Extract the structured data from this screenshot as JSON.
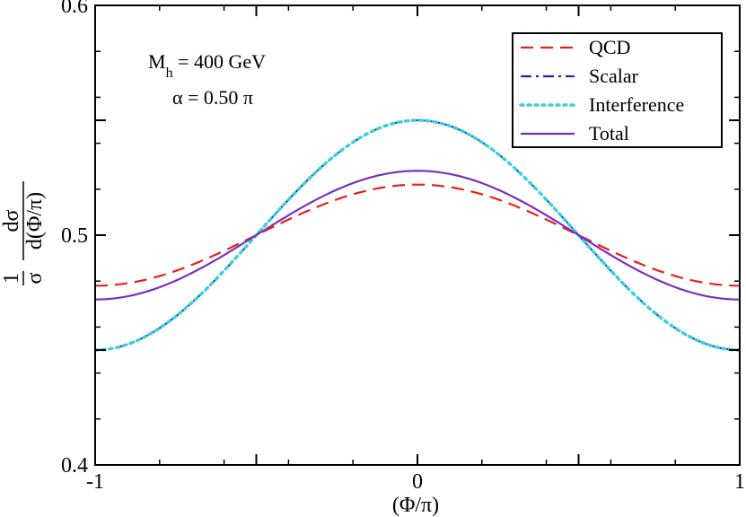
{
  "chart_data": {
    "type": "line",
    "xlabel": "(Φ/π)",
    "ylabel": {
      "frac1_num": "1",
      "frac1_den": "σ",
      "frac2_num": "dσ",
      "frac2_den": "d(Φ/π)"
    },
    "xlim": [
      -1,
      1
    ],
    "ylim": [
      0.4,
      0.6
    ],
    "x_ticks": [
      {
        "value": -1,
        "label": "-1"
      },
      {
        "value": 0,
        "label": "0"
      },
      {
        "value": 1,
        "label": "1"
      }
    ],
    "y_ticks": [
      {
        "value": 0.4,
        "label": "0.4"
      },
      {
        "value": 0.5,
        "label": "0.5"
      },
      {
        "value": 0.6,
        "label": "0.6"
      }
    ],
    "x_minor_step": 0.2,
    "y_minor_step": 0.02,
    "annotations": {
      "mass_symbol": "M",
      "mass_sub": "h",
      "mass_value": " = 400 GeV",
      "alpha": "α = 0.50 π"
    },
    "legend_position": "top-right",
    "series": [
      {
        "name": "QCD",
        "color": "#e8201c",
        "dash": "dashed",
        "mean": 0.5,
        "amplitude": 0.022
      },
      {
        "name": "Scalar",
        "color": "#1d1fd6",
        "dash": "dashdot",
        "mean": 0.5,
        "amplitude": 0.05
      },
      {
        "name": "Interference",
        "color": "#3fd0d6",
        "dash": "dotted",
        "mean": 0.5,
        "amplitude": 0.05
      },
      {
        "name": "Total",
        "color": "#7b2fbf",
        "dash": "solid",
        "mean": 0.5,
        "amplitude": 0.028
      }
    ]
  }
}
